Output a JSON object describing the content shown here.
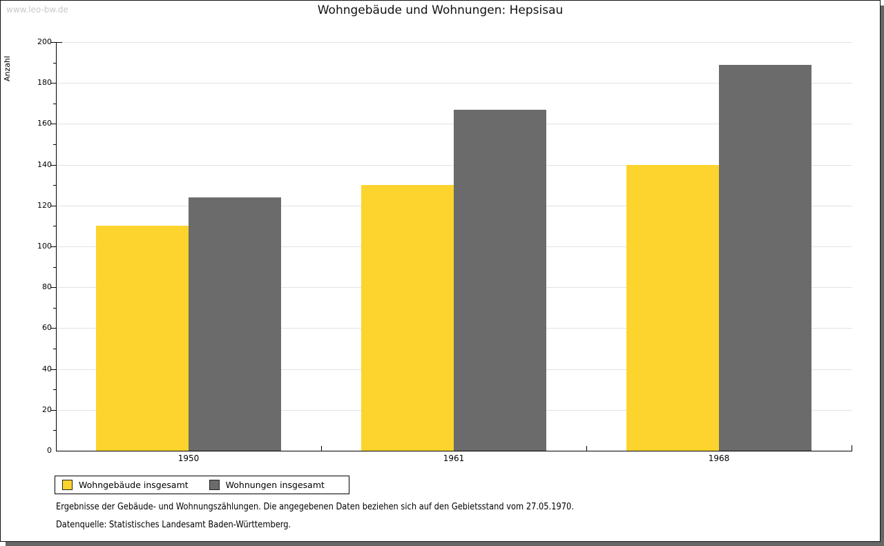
{
  "watermark": "www.leo-bw.de",
  "title": "Wohngebäude und Wohnungen: Hepsisau",
  "chart_data": {
    "type": "bar",
    "categories": [
      "1950",
      "1961",
      "1968"
    ],
    "series": [
      {
        "name": "Wohngebäude insgesamt",
        "color": "#fcd42d",
        "values": [
          110,
          130,
          140
        ]
      },
      {
        "name": "Wohnungen insgesamt",
        "color": "#6b6b6b",
        "values": [
          124,
          167,
          189
        ]
      }
    ],
    "title": "Wohngebäude und Wohnungen: Hepsisau",
    "xlabel": "",
    "ylabel": "Anzahl",
    "ylim": [
      0,
      200
    ],
    "ytick_major": 20,
    "ytick_minor": 10,
    "grid": "horizontal-major-only",
    "legend_position": "bottom-left"
  },
  "footer": {
    "line1": "Ergebnisse der Gebäude- und Wohnungszählungen. Die angegebenen Daten beziehen sich auf den Gebietsstand vom 27.05.1970.",
    "line2": "Datenquelle: Statistisches Landesamt Baden-Württemberg."
  },
  "colors": {
    "bar_yellow": "#fcd42d",
    "bar_gray": "#6b6b6b",
    "gridline": "#e2e2e2",
    "axis": "#000000",
    "watermark": "#c9c9c9",
    "page_shadow": "#666666"
  }
}
